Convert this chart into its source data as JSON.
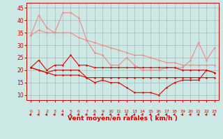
{
  "bg_color": "#cce8e4",
  "grid_color": "#aaaaaa",
  "xlabel": "Vent moyen/en rafales ( km/h )",
  "xlabel_color": "#cc0000",
  "tick_color": "#cc0000",
  "ylim": [
    8,
    47
  ],
  "xlim": [
    -0.5,
    23.5
  ],
  "yticks": [
    10,
    15,
    20,
    25,
    30,
    35,
    40,
    45
  ],
  "xticks": [
    0,
    1,
    2,
    3,
    4,
    5,
    6,
    7,
    8,
    9,
    10,
    11,
    12,
    13,
    14,
    15,
    16,
    17,
    18,
    19,
    20,
    21,
    22,
    23
  ],
  "light_pink": "#f08888",
  "dark_red": "#dd0000",
  "series_light": [
    [
      34,
      42,
      37,
      35,
      43,
      43,
      41,
      32,
      27,
      26,
      22,
      22,
      25,
      22,
      20,
      20,
      20,
      21,
      21,
      21,
      24,
      31,
      24,
      29
    ],
    [
      34,
      36,
      35,
      35,
      35,
      35,
      33,
      32,
      31,
      30,
      29,
      28,
      27,
      26,
      26,
      25,
      24,
      23,
      23,
      22,
      22,
      22,
      22,
      22
    ]
  ],
  "series_dark": [
    [
      21,
      24,
      20,
      22,
      22,
      26,
      22,
      22,
      21,
      21,
      21,
      21,
      21,
      21,
      21,
      21,
      21,
      21,
      21,
      20,
      20,
      20,
      20,
      19
    ],
    [
      21,
      20,
      19,
      20,
      20,
      20,
      20,
      17,
      15,
      16,
      15,
      15,
      13,
      11,
      11,
      11,
      10,
      13,
      15,
      16,
      16,
      16,
      20,
      19
    ],
    [
      21,
      20,
      19,
      18,
      18,
      18,
      18,
      17,
      17,
      17,
      17,
      17,
      17,
      17,
      17,
      17,
      17,
      17,
      17,
      17,
      17,
      17,
      17,
      17
    ]
  ],
  "arrow_color": "#cc0000"
}
